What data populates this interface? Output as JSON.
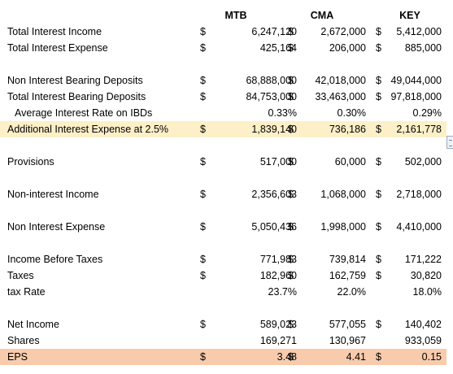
{
  "headers": {
    "col1": "MTB",
    "col2": "CMA",
    "col3": "KEY"
  },
  "rows": [
    {
      "label": "Total Interest Income",
      "d1": "$",
      "v1": "6,247,120",
      "d2": "$",
      "v2": "2,672,000",
      "d3": "$",
      "v3": "5,412,000"
    },
    {
      "label": "Total Interest Expense",
      "d1": "$",
      "v1": "425,164",
      "d2": "$",
      "v2": "206,000",
      "d3": "$",
      "v3": "885,000"
    },
    {
      "label": "Non Interest Bearing Deposits",
      "d1": "$",
      "v1": "68,888,000",
      "d2": "$",
      "v2": "42,018,000",
      "d3": "$",
      "v3": "49,044,000"
    },
    {
      "label": "Total Interest Bearing Deposits",
      "d1": "$",
      "v1": "84,753,000",
      "d2": "$",
      "v2": "33,463,000",
      "d3": "$",
      "v3": "97,818,000"
    },
    {
      "label": "Average Interest Rate on IBDs",
      "d1": "",
      "v1": "0.33%",
      "d2": "",
      "v2": "0.30%",
      "d3": "",
      "v3": "0.29%"
    },
    {
      "label": "Additional Interest Expense at 2.5%",
      "d1": "$",
      "v1": "1,839,140",
      "d2": "$",
      "v2": "736,186",
      "d3": "$",
      "v3": "2,161,778"
    },
    {
      "label": "Provisions",
      "d1": "$",
      "v1": "517,000",
      "d2": "$",
      "v2": "60,000",
      "d3": "$",
      "v3": "502,000"
    },
    {
      "label": "Non-interest Income",
      "d1": "$",
      "v1": "2,356,603",
      "d2": "$",
      "v2": "1,068,000",
      "d3": "$",
      "v3": "2,718,000"
    },
    {
      "label": "Non Interest Expense",
      "d1": "$",
      "v1": "5,050,436",
      "d2": "$",
      "v2": "1,998,000",
      "d3": "$",
      "v3": "4,410,000"
    },
    {
      "label": "Income Before Taxes",
      "d1": "$",
      "v1": "771,983",
      "d2": "$",
      "v2": "739,814",
      "d3": "$",
      "v3": "171,222"
    },
    {
      "label": "Taxes",
      "d1": "$",
      "v1": "182,960",
      "d2": "$",
      "v2": "162,759",
      "d3": "$",
      "v3": "30,820"
    },
    {
      "label": "tax Rate",
      "d1": "",
      "v1": "23.7%",
      "d2": "",
      "v2": "22.0%",
      "d3": "",
      "v3": "18.0%"
    },
    {
      "label": "Net Income",
      "d1": "$",
      "v1": "589,023",
      "d2": "$",
      "v2": "577,055",
      "d3": "$",
      "v3": "140,402"
    },
    {
      "label": "Shares",
      "d1": "",
      "v1": "169,271",
      "d2": "",
      "v2": "130,967",
      "d3": "",
      "v3": "933,059"
    },
    {
      "label": "EPS",
      "d1": "$",
      "v1": "3.48",
      "d2": "$",
      "v2": "4.41",
      "d3": "$",
      "v3": "0.15"
    }
  ],
  "colors": {
    "highlight_yellow": "#FDF0C8",
    "highlight_orange": "#F8CBAD"
  },
  "icons": {
    "side_tab": "collapse-handle-icon"
  }
}
